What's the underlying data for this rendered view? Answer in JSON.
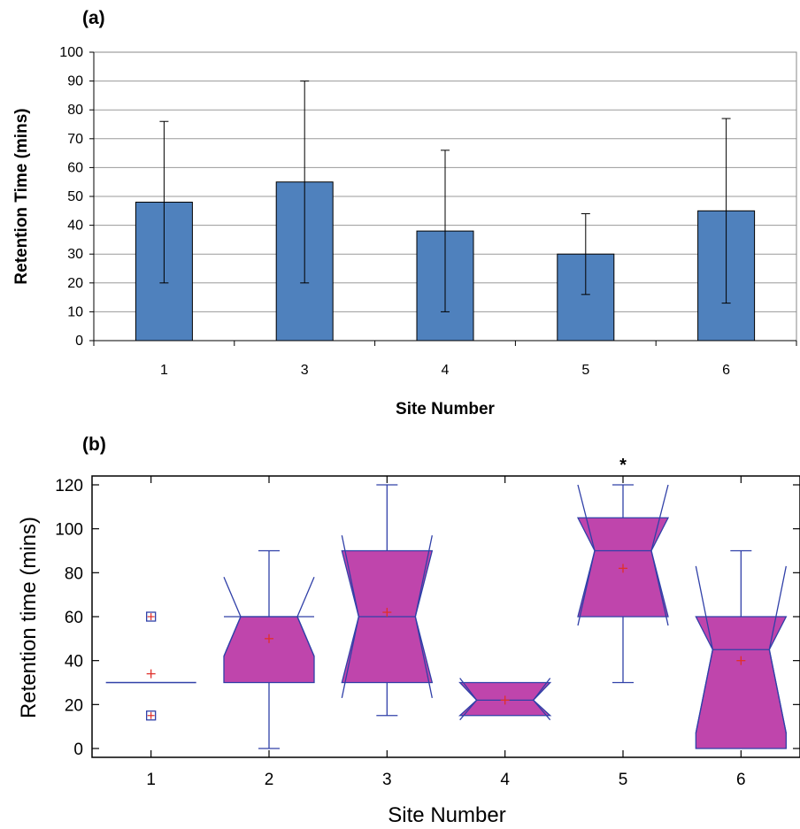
{
  "chart_data": [
    {
      "panel_label": "(a)",
      "type": "bar",
      "categories": [
        "1",
        "3",
        "4",
        "5",
        "6"
      ],
      "values": [
        48,
        55,
        38,
        30,
        45
      ],
      "error_low": [
        20,
        20,
        10,
        16,
        13
      ],
      "error_high": [
        76,
        90,
        66,
        44,
        77
      ],
      "xlabel": "Site Number",
      "ylabel": "Retention Time (mins)",
      "ylim": [
        0,
        100
      ],
      "yticks": [
        "0",
        "10",
        "20",
        "30",
        "40",
        "50",
        "60",
        "70",
        "80",
        "90",
        "100"
      ],
      "grid": true,
      "bar_color": "#4f81bd"
    },
    {
      "panel_label": "(b)",
      "type": "box",
      "categories": [
        "1",
        "2",
        "3",
        "4",
        "5",
        "6"
      ],
      "boxes": [
        {
          "q1": 30,
          "median": 30,
          "q3": 30,
          "whisker_low": 30,
          "whisker_high": 30,
          "mean": 34,
          "notch_low": 30,
          "notch_high": 30,
          "outliers": [
            60,
            15
          ]
        },
        {
          "q1": 30,
          "median": 60,
          "q3": 60,
          "whisker_low": 0,
          "whisker_high": 90,
          "mean": 50,
          "notch_low": 42,
          "notch_high": 78,
          "outliers": []
        },
        {
          "q1": 30,
          "median": 60,
          "q3": 90,
          "whisker_low": 15,
          "whisker_high": 120,
          "mean": 62,
          "notch_low": 23,
          "notch_high": 97,
          "outliers": []
        },
        {
          "q1": 15,
          "median": 22,
          "q3": 30,
          "whisker_low": 15,
          "whisker_high": 30,
          "mean": 22,
          "notch_low": 13,
          "notch_high": 32,
          "outliers": []
        },
        {
          "q1": 60,
          "median": 90,
          "q3": 105,
          "whisker_low": 30,
          "whisker_high": 120,
          "mean": 82,
          "notch_low": 56,
          "notch_high": 120,
          "outliers": []
        },
        {
          "q1": 0,
          "median": 45,
          "q3": 60,
          "whisker_low": 0,
          "whisker_high": 90,
          "mean": 40,
          "notch_low": 7,
          "notch_high": 83,
          "outliers": []
        }
      ],
      "significance_marker": {
        "category": "5",
        "text": "*"
      },
      "xlabel": "Site Number",
      "ylabel": "Retention time (mins)",
      "ylim": [
        0,
        120
      ],
      "yticks": [
        "0",
        "20",
        "40",
        "60",
        "80",
        "100",
        "120"
      ],
      "box_color": "#bf45ac",
      "line_color": "#3040a8",
      "mean_marker_color": "#e0302a"
    }
  ]
}
